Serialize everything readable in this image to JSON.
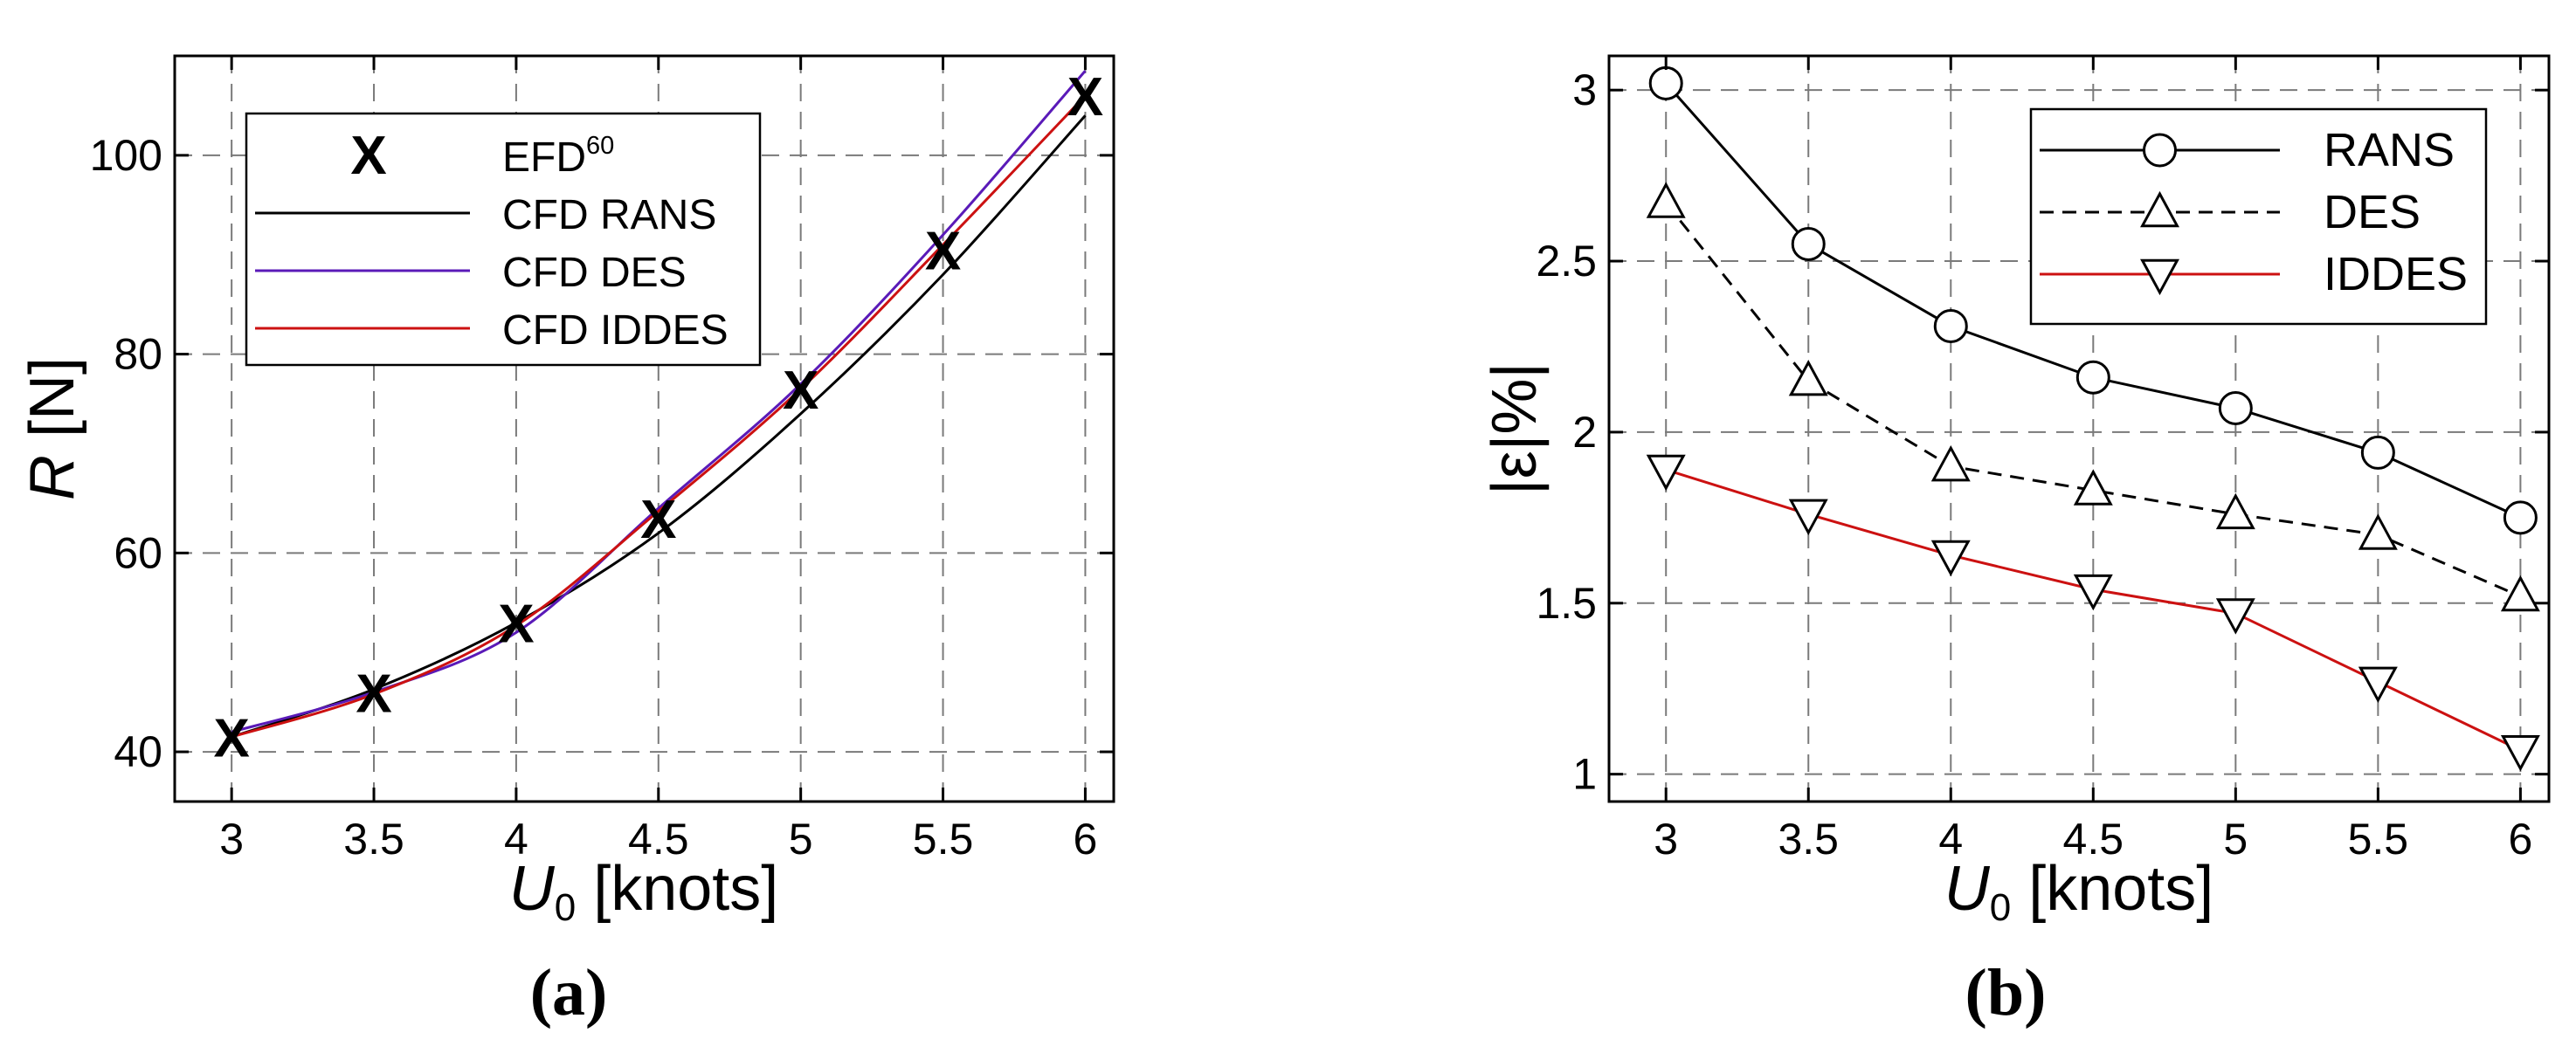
{
  "captions": [
    "(a)",
    "(b)"
  ],
  "chart_data": [
    {
      "type": "line",
      "title": "",
      "xlabel": "U0 [knots]",
      "xlabel_main": "U",
      "xlabel_sub": "0",
      "xlabel_rest": " [knots]",
      "ylabel": "R [N]",
      "ylabel_main": "R",
      "ylabel_rest": " [N]",
      "xlim": [
        2.8,
        6.1
      ],
      "ylim": [
        35,
        110
      ],
      "xticks": [
        3,
        3.5,
        4,
        4.5,
        5,
        5.5,
        6
      ],
      "xtick_labels": [
        "3",
        "3.5",
        "4",
        "4.5",
        "5",
        "5.5",
        "6"
      ],
      "yticks": [
        40,
        60,
        80,
        100
      ],
      "ytick_labels": [
        "40",
        "60",
        "80",
        "100"
      ],
      "grid": true,
      "legend_position": "top-left",
      "series": [
        {
          "name": "EFD60",
          "label_main": "EFD",
          "label_sup": "60",
          "marker": "x",
          "line": "none",
          "color": "#000000",
          "x": [
            3,
            3.5,
            4,
            4.5,
            5,
            5.5,
            6
          ],
          "y": [
            41,
            45.5,
            52.5,
            63,
            76,
            90,
            105.5
          ]
        },
        {
          "name": "CFD RANS",
          "marker": "none",
          "line": "solid",
          "color": "#000000",
          "x": [
            3,
            3.5,
            4,
            4.5,
            5,
            5.5,
            6
          ],
          "y": [
            41.5,
            46.3,
            53,
            62,
            74,
            88,
            104
          ]
        },
        {
          "name": "CFD DES",
          "marker": "none",
          "line": "solid",
          "color": "#5a1ab8",
          "x": [
            3,
            3.5,
            4,
            4.5,
            5,
            5.5,
            6
          ],
          "y": [
            42,
            46,
            52,
            64.5,
            77,
            92,
            108.5
          ]
        },
        {
          "name": "CFD IDDES",
          "marker": "none",
          "line": "solid",
          "color": "#cc1111",
          "x": [
            3,
            3.5,
            4,
            4.5,
            5,
            5.5,
            6
          ],
          "y": [
            41.5,
            45.8,
            52.7,
            64.2,
            76.5,
            91,
            106
          ]
        }
      ]
    },
    {
      "type": "line",
      "title": "",
      "xlabel": "U0 [knots]",
      "xlabel_main": "U",
      "xlabel_sub": "0",
      "xlabel_rest": " [knots]",
      "ylabel": "|ε|%|",
      "ylabel_text": "|ε|%|",
      "xlim": [
        2.8,
        6.1
      ],
      "ylim": [
        0.92,
        3.1
      ],
      "xticks": [
        3,
        3.5,
        4,
        4.5,
        5,
        5.5,
        6
      ],
      "xtick_labels": [
        "3",
        "3.5",
        "4",
        "4.5",
        "5",
        "5.5",
        "6"
      ],
      "yticks": [
        1,
        1.5,
        2,
        2.5,
        3
      ],
      "ytick_labels": [
        "1",
        "1.5",
        "2",
        "2.5",
        "3"
      ],
      "grid": true,
      "legend_position": "top-right",
      "series": [
        {
          "name": "RANS",
          "marker": "circle",
          "line": "solid",
          "color": "#000000",
          "x": [
            3,
            3.5,
            4,
            4.5,
            5,
            5.5,
            6
          ],
          "y": [
            3.02,
            2.55,
            2.31,
            2.16,
            2.07,
            1.94,
            1.75
          ]
        },
        {
          "name": "DES",
          "marker": "triangle-up",
          "line": "dashed",
          "color": "#000000",
          "x": [
            3,
            3.5,
            4,
            4.5,
            5,
            5.5,
            6
          ],
          "y": [
            2.67,
            2.15,
            1.9,
            1.83,
            1.76,
            1.7,
            1.52
          ]
        },
        {
          "name": "IDDES",
          "marker": "triangle-down",
          "line": "solid",
          "color": "#cc1111",
          "x": [
            3,
            3.5,
            4,
            4.5,
            5,
            5.5,
            6
          ],
          "y": [
            1.89,
            1.76,
            1.64,
            1.54,
            1.47,
            1.27,
            1.07
          ]
        }
      ]
    }
  ]
}
